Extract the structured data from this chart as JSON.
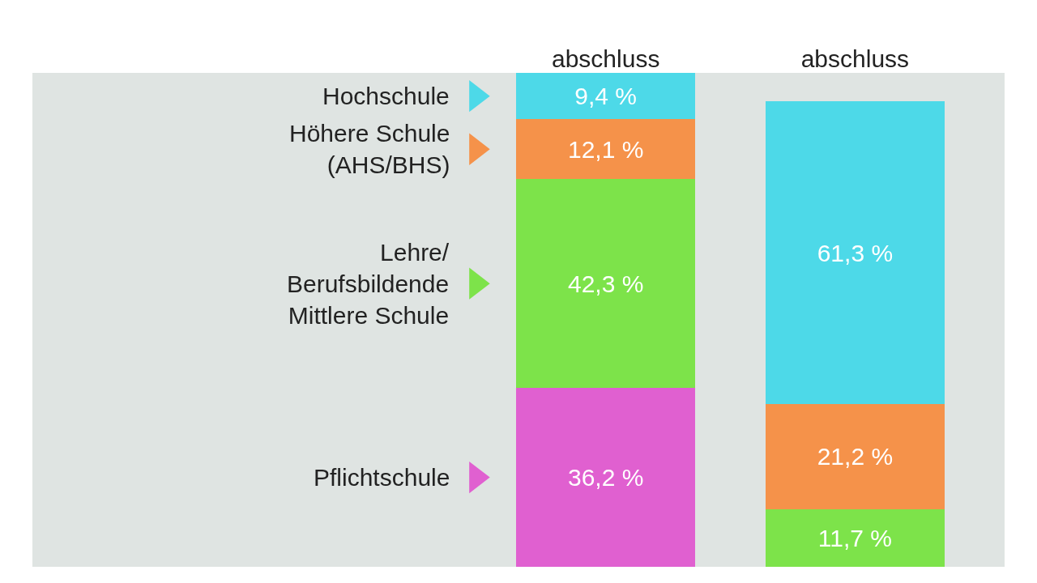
{
  "chart_data": {
    "type": "bar",
    "stacked": true,
    "categories": [
      "abschluss",
      "abschluss"
    ],
    "series": [
      {
        "name": "Pflichtschule",
        "color": "#e060d0",
        "values": [
          36.2,
          null
        ],
        "value_labels": [
          "36,2 %",
          null
        ]
      },
      {
        "name": "Lehre/\nBerufsbildende\nMittlere Schule",
        "color": "#7de34a",
        "values": [
          42.3,
          11.7
        ],
        "value_labels": [
          "42,3 %",
          "11,7 %"
        ]
      },
      {
        "name": "Höhere Schule\n(AHS/BHS)",
        "color": "#f5924a",
        "values": [
          12.1,
          21.2
        ],
        "value_labels": [
          "12,1 %",
          "21,2 %"
        ]
      },
      {
        "name": "Hochschule",
        "color": "#4dd9e8",
        "values": [
          9.4,
          61.3
        ],
        "value_labels": [
          "9,4 %",
          "61,3 %"
        ]
      }
    ],
    "ylim": [
      0,
      100
    ],
    "tick_labels": "x",
    "grid": false,
    "legend": "left"
  }
}
